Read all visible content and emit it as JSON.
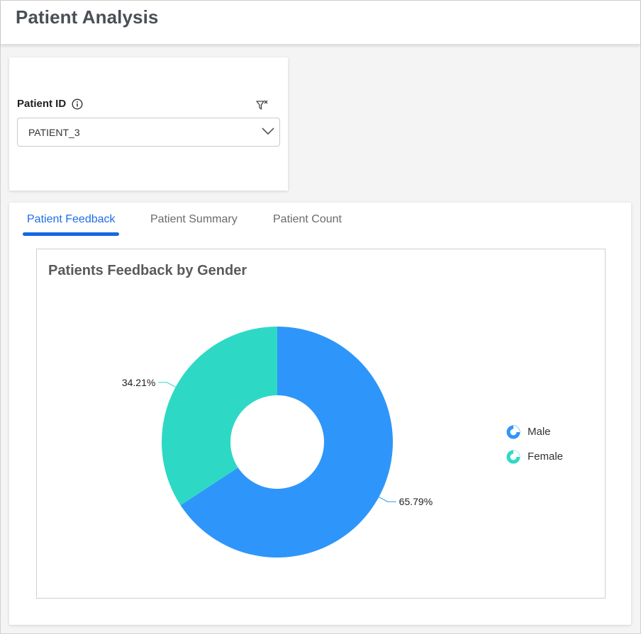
{
  "header": {
    "title": "Patient Analysis"
  },
  "filter": {
    "label": "Patient ID",
    "selected": "PATIENT_3"
  },
  "tabs": [
    {
      "label": "Patient Feedback",
      "active": true
    },
    {
      "label": "Patient Summary",
      "active": false
    },
    {
      "label": "Patient Count",
      "active": false
    }
  ],
  "chart": {
    "title": "Patients Feedback by Gender",
    "legend": [
      "Male",
      "Female"
    ]
  },
  "colors": {
    "male": "#2e96fa",
    "female": "#2dd9c5",
    "accent": "#1667e3"
  },
  "chart_data": {
    "type": "pie",
    "donut": true,
    "title": "Patients Feedback by Gender",
    "categories": [
      "Male",
      "Female"
    ],
    "values": [
      65.79,
      34.21
    ],
    "data_labels": [
      "65.79%",
      "34.21%"
    ],
    "legend_placement": "right"
  }
}
